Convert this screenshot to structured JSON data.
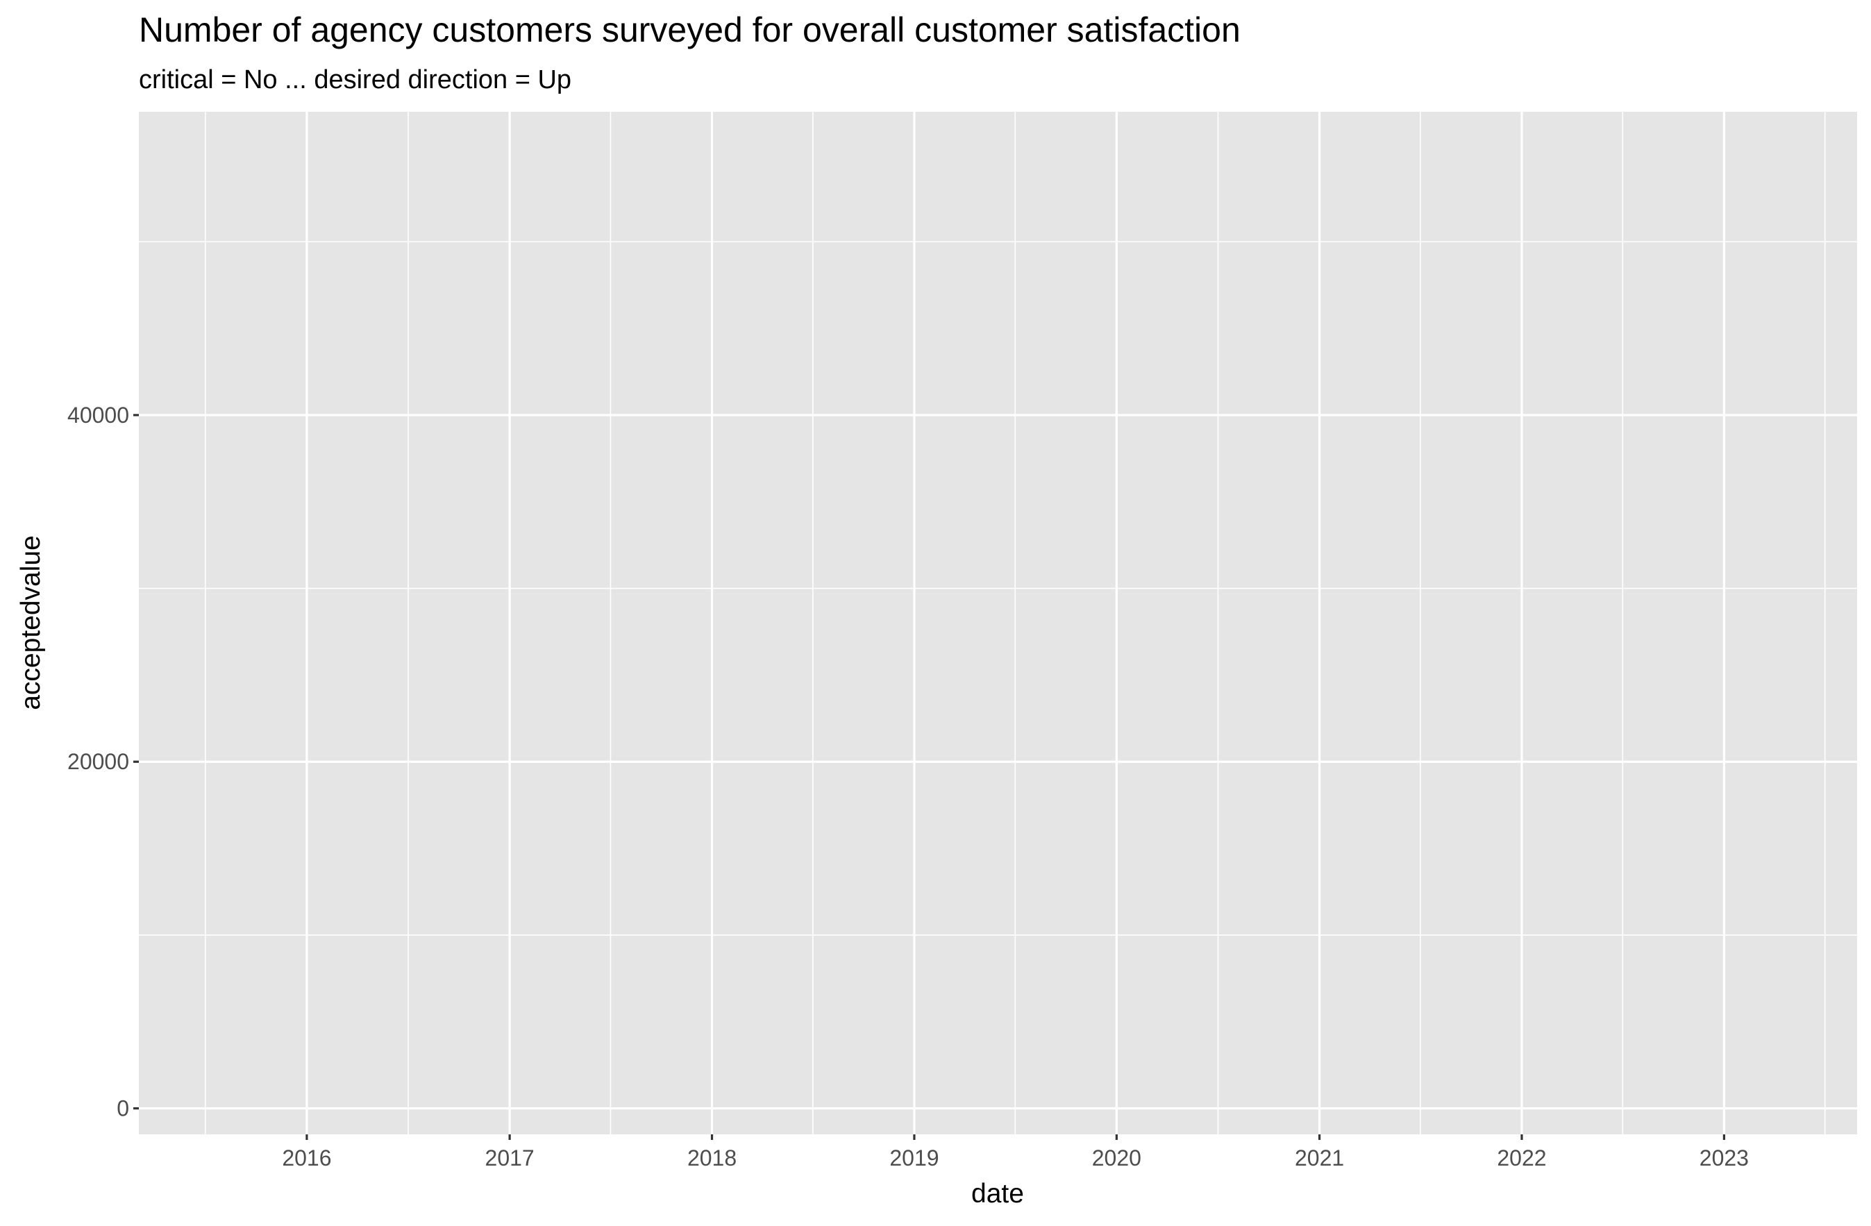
{
  "chart_data": {
    "type": "line",
    "title": "Number of agency customers surveyed for overall customer satisfaction",
    "subtitle": "critical = No ... desired direction = Up",
    "xlabel": "date",
    "ylabel": "acceptedvalue",
    "x_ticks": [
      "2016",
      "2017",
      "2018",
      "2019",
      "2020",
      "2021",
      "2022",
      "2023"
    ],
    "y_ticks": [
      0,
      20000,
      40000
    ],
    "xlim": [
      "2015-03-04",
      "2023-08-29"
    ],
    "ylim": [
      -1500,
      57500
    ],
    "grid": true,
    "series": []
  },
  "colors": {
    "panel_background": "#e5e5e5",
    "grid_line": "#ffffff",
    "tick_text": "#4d4d4d",
    "axis_tick": "#333333"
  }
}
